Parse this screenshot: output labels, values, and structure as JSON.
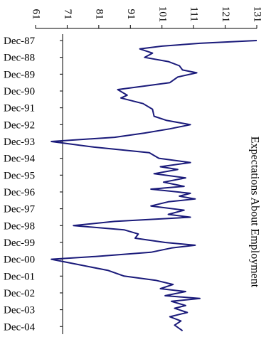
{
  "chart_data": {
    "type": "line",
    "title": "Expectations About Employment",
    "xlabel": "",
    "ylabel": "",
    "orientation": "rotated-90-clockwise",
    "date_ticks": [
      "Dec-87",
      "Dec-88",
      "Dec-89",
      "Dec-90",
      "Dec-91",
      "Dec-92",
      "Dec-93",
      "Dec-94",
      "Dec-95",
      "Dec-96",
      "Dec-97",
      "Dec-98",
      "Dec-99",
      "Dec-00",
      "Dec-01",
      "Dec-02",
      "Dec-03",
      "Dec-04"
    ],
    "value_ticks": [
      61,
      71,
      81,
      91,
      101,
      111,
      121,
      131
    ],
    "ylim": [
      61,
      131
    ],
    "grid": false,
    "line_color": "#1a1a7a",
    "series": [
      {
        "points": [
          [
            "1987-12",
            131.0
          ],
          [
            "1988-02",
            113.0
          ],
          [
            "1988-04",
            101.0
          ],
          [
            "1988-06",
            94.0
          ],
          [
            "1988-09",
            98.0
          ],
          [
            "1988-12",
            95.5
          ],
          [
            "1989-03",
            103.0
          ],
          [
            "1989-06",
            106.5
          ],
          [
            "1989-09",
            107.5
          ],
          [
            "1989-11",
            112.0
          ],
          [
            "1990-02",
            106.0
          ],
          [
            "1990-06",
            103.5
          ],
          [
            "1990-08",
            97.0
          ],
          [
            "1990-11",
            87.0
          ],
          [
            "1991-03",
            90.0
          ],
          [
            "1991-05",
            88.0
          ],
          [
            "1991-09",
            95.0
          ],
          [
            "1992-01",
            98.0
          ],
          [
            "1992-06",
            98.5
          ],
          [
            "1992-09",
            102.5
          ],
          [
            "1992-12",
            110.0
          ],
          [
            "1993-03",
            103.5
          ],
          [
            "1993-06",
            95.5
          ],
          [
            "1993-09",
            86.0
          ],
          [
            "1993-12",
            66.0
          ],
          [
            "1994-04",
            79.5
          ],
          [
            "1994-08",
            97.0
          ],
          [
            "1994-12",
            100.0
          ],
          [
            "1995-03",
            110.0
          ],
          [
            "1995-06",
            100.5
          ],
          [
            "1995-08",
            106.0
          ],
          [
            "1995-11",
            98.5
          ],
          [
            "1996-02",
            108.5
          ],
          [
            "1996-05",
            101.5
          ],
          [
            "1996-08",
            108.0
          ],
          [
            "1996-10",
            97.5
          ],
          [
            "1997-01",
            110.0
          ],
          [
            "1997-03",
            106.5
          ],
          [
            "1997-05",
            111.5
          ],
          [
            "1997-07",
            103.0
          ],
          [
            "1997-10",
            97.5
          ],
          [
            "1998-01",
            108.0
          ],
          [
            "1998-04",
            103.0
          ],
          [
            "1998-06",
            110.0
          ],
          [
            "1998-09",
            86.0
          ],
          [
            "1998-12",
            73.0
          ],
          [
            "1999-03",
            89.0
          ],
          [
            "1999-06",
            93.5
          ],
          [
            "1999-09",
            92.5
          ],
          [
            "1999-12",
            102.0
          ],
          [
            "2000-02",
            111.5
          ],
          [
            "2000-04",
            104.0
          ],
          [
            "2000-07",
            97.5
          ],
          [
            "2000-10",
            80.0
          ],
          [
            "2000-12",
            66.0
          ],
          [
            "2001-04",
            75.0
          ],
          [
            "2001-08",
            84.0
          ],
          [
            "2001-12",
            89.0
          ],
          [
            "2002-03",
            99.0
          ],
          [
            "2002-06",
            104.5
          ],
          [
            "2002-09",
            100.5
          ],
          [
            "2002-11",
            108.5
          ],
          [
            "2003-02",
            102.0
          ],
          [
            "2003-04",
            113.0
          ],
          [
            "2003-06",
            104.0
          ],
          [
            "2003-09",
            108.5
          ],
          [
            "2003-11",
            105.0
          ],
          [
            "2004-02",
            109.0
          ],
          [
            "2004-05",
            103.5
          ],
          [
            "2004-08",
            107.0
          ],
          [
            "2004-11",
            105.0
          ],
          [
            "2005-03",
            107.5
          ]
        ]
      }
    ]
  }
}
